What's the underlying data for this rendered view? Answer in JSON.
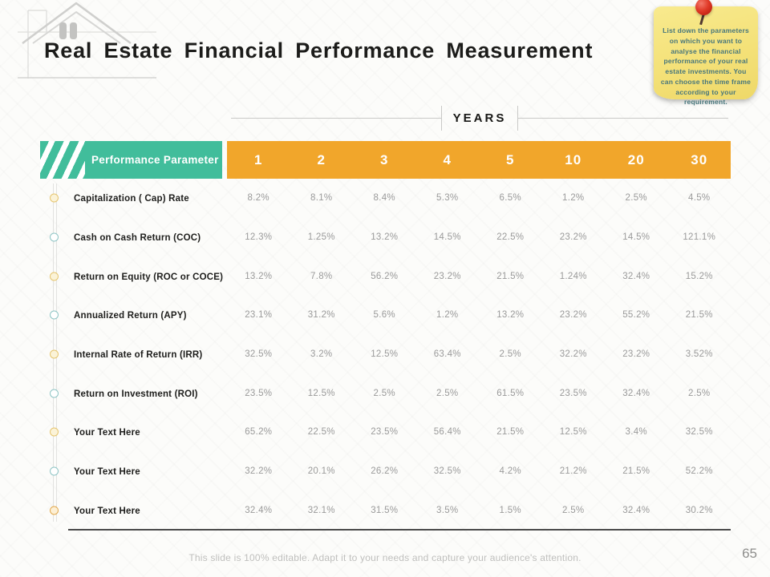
{
  "slide": {
    "title": "Real Estate Financial Performance Measurement",
    "footer_note": "This slide is 100% editable. Adapt it to your needs and capture your audience's attention.",
    "page_number": "65"
  },
  "sticky_note": {
    "text": "List down the parameters on which you want to analyse the financial performance of your real estate investments. You can choose the time frame according to your requirement.",
    "bg_color": "#f4e178",
    "text_color": "#47767c",
    "pin_icon": "red-pushpin"
  },
  "years_axis": {
    "label": "YEARS"
  },
  "table": {
    "param_header": "Performance Parameter",
    "param_header_bg": "#41bd9b",
    "years_header_bg": "#f1a62b",
    "year_columns": [
      "1",
      "2",
      "3",
      "4",
      "5",
      "10",
      "20",
      "30"
    ],
    "rows": [
      {
        "label": "Capitalization ( Cap) Rate",
        "bullet": "yellow",
        "values": [
          "8.2%",
          "8.1%",
          "8.4%",
          "5.3%",
          "6.5%",
          "1.2%",
          "2.5%",
          "4.5%"
        ]
      },
      {
        "label": "Cash on Cash Return (COC)",
        "bullet": "teal",
        "values": [
          "12.3%",
          "1.25%",
          "13.2%",
          "14.5%",
          "22.5%",
          "23.2%",
          "14.5%",
          "121.1%"
        ]
      },
      {
        "label": "Return on Equity (ROC or COCE)",
        "bullet": "yellow",
        "values": [
          "13.2%",
          "7.8%",
          "56.2%",
          "23.2%",
          "21.5%",
          "1.24%",
          "32.4%",
          "15.2%"
        ]
      },
      {
        "label": "Annualized Return (APY)",
        "bullet": "teal",
        "values": [
          "23.1%",
          "31.2%",
          "5.6%",
          "1.2%",
          "13.2%",
          "23.2%",
          "55.2%",
          "21.5%"
        ]
      },
      {
        "label": "Internal Rate of Return (IRR)",
        "bullet": "yellow",
        "values": [
          "32.5%",
          "3.2%",
          "12.5%",
          "63.4%",
          "2.5%",
          "32.2%",
          "23.2%",
          "3.52%"
        ]
      },
      {
        "label": "Return on Investment (ROI)",
        "bullet": "teal",
        "values": [
          "23.5%",
          "12.5%",
          "2.5%",
          "2.5%",
          "61.5%",
          "23.5%",
          "32.4%",
          "2.5%"
        ]
      },
      {
        "label": "Your Text Here",
        "bullet": "yellow",
        "values": [
          "65.2%",
          "22.5%",
          "23.5%",
          "56.4%",
          "21.5%",
          "12.5%",
          "3.4%",
          "32.5%"
        ]
      },
      {
        "label": "Your Text Here",
        "bullet": "teal",
        "values": [
          "32.2%",
          "20.1%",
          "26.2%",
          "32.5%",
          "4.2%",
          "21.2%",
          "21.5%",
          "52.2%"
        ]
      },
      {
        "label": "Your Text Here",
        "bullet": "orange",
        "values": [
          "32.4%",
          "32.1%",
          "31.5%",
          "3.5%",
          "1.5%",
          "2.5%",
          "32.4%",
          "30.2%"
        ]
      }
    ]
  },
  "chart_data": {
    "type": "table",
    "title": "Real Estate Financial Performance Measurement",
    "columns_axis_label": "YEARS",
    "row_header": "Performance Parameter",
    "columns": [
      "1",
      "2",
      "3",
      "4",
      "5",
      "10",
      "20",
      "30"
    ],
    "rows": [
      [
        "Capitalization ( Cap) Rate",
        "8.2%",
        "8.1%",
        "8.4%",
        "5.3%",
        "6.5%",
        "1.2%",
        "2.5%",
        "4.5%"
      ],
      [
        "Cash on Cash Return (COC)",
        "12.3%",
        "1.25%",
        "13.2%",
        "14.5%",
        "22.5%",
        "23.2%",
        "14.5%",
        "121.1%"
      ],
      [
        "Return on Equity (ROC or COCE)",
        "13.2%",
        "7.8%",
        "56.2%",
        "23.2%",
        "21.5%",
        "1.24%",
        "32.4%",
        "15.2%"
      ],
      [
        "Annualized Return (APY)",
        "23.1%",
        "31.2%",
        "5.6%",
        "1.2%",
        "13.2%",
        "23.2%",
        "55.2%",
        "21.5%"
      ],
      [
        "Internal Rate of Return (IRR)",
        "32.5%",
        "3.2%",
        "12.5%",
        "63.4%",
        "2.5%",
        "32.2%",
        "23.2%",
        "3.52%"
      ],
      [
        "Return on Investment (ROI)",
        "23.5%",
        "12.5%",
        "2.5%",
        "2.5%",
        "61.5%",
        "23.5%",
        "32.4%",
        "2.5%"
      ],
      [
        "Your Text Here",
        "65.2%",
        "22.5%",
        "23.5%",
        "56.4%",
        "21.5%",
        "12.5%",
        "3.4%",
        "32.5%"
      ],
      [
        "Your Text Here",
        "32.2%",
        "20.1%",
        "26.2%",
        "32.5%",
        "4.2%",
        "21.2%",
        "21.5%",
        "52.2%"
      ],
      [
        "Your Text Here",
        "32.4%",
        "32.1%",
        "31.5%",
        "3.5%",
        "1.5%",
        "2.5%",
        "32.4%",
        "30.2%"
      ]
    ]
  }
}
